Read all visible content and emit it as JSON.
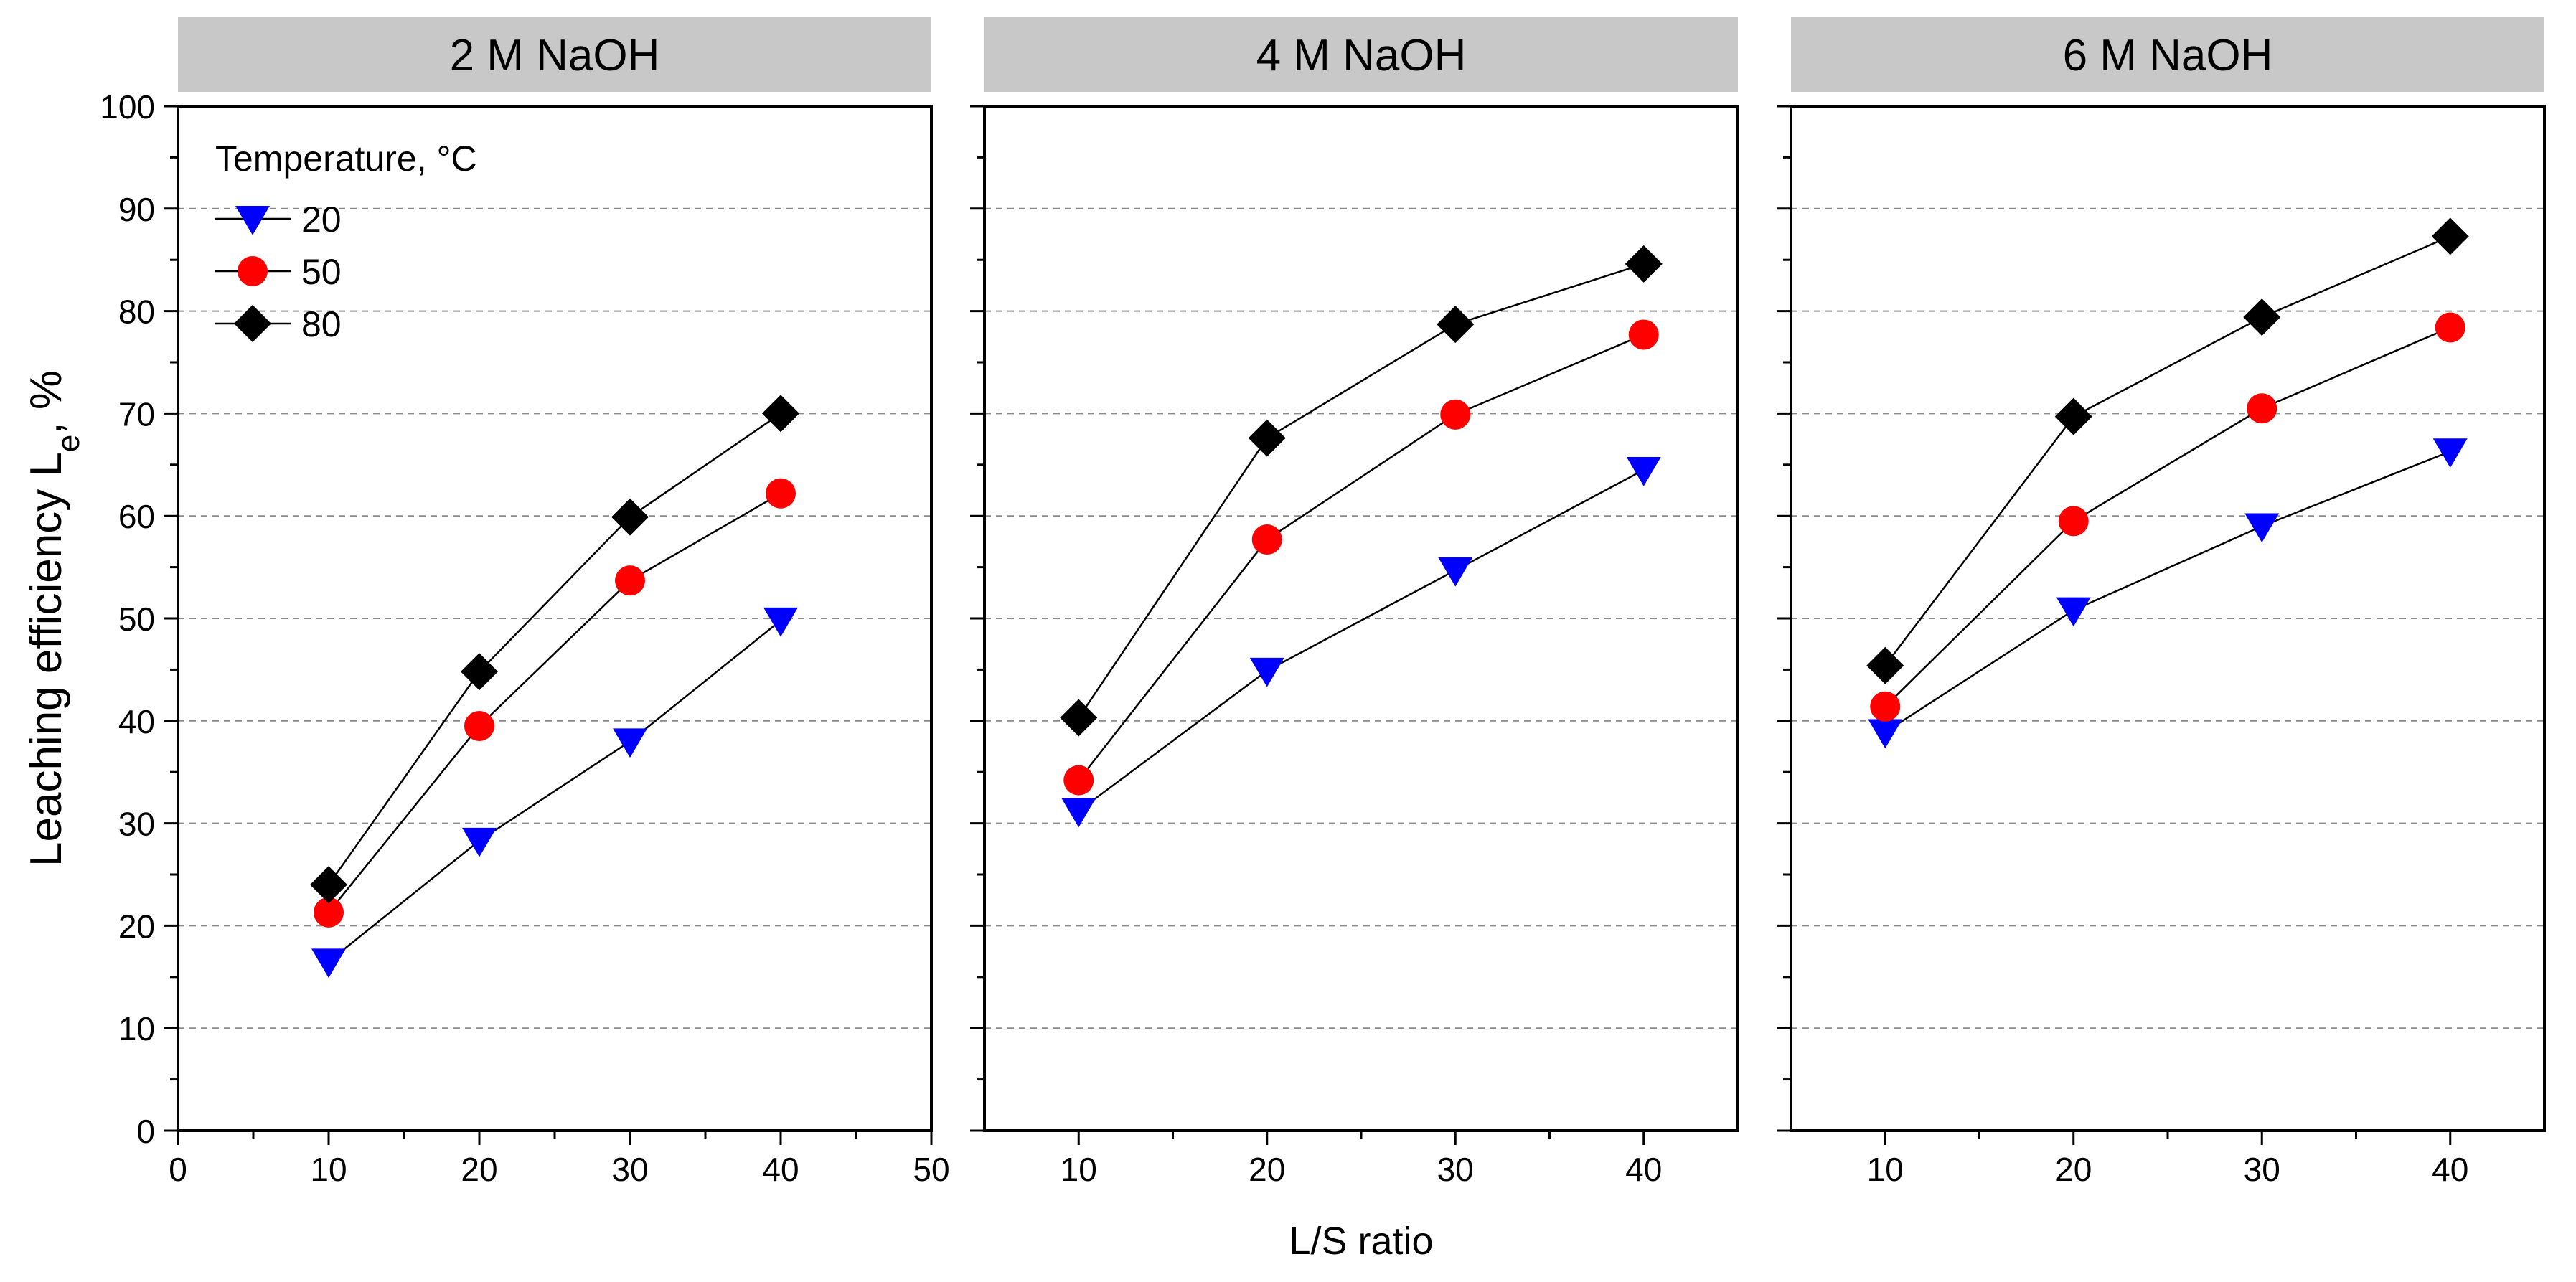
{
  "chart_data": {
    "type": "line",
    "shared": {
      "ylabel_main": "Leaching efficiency L",
      "ylabel_sub": "e",
      "ylabel_tail": ", %",
      "xlabel": "L/S ratio",
      "legend_title": "Temperature, °C",
      "ylim": [
        0,
        100
      ],
      "yticks": [
        0,
        10,
        20,
        30,
        40,
        50,
        60,
        70,
        80,
        90,
        100
      ],
      "grid": "horizontal dashed",
      "legend_placement": "top-left of first panel"
    },
    "series_style": [
      {
        "name": "20",
        "marker": "triangle-down",
        "color": "#0000ff"
      },
      {
        "name": "50",
        "marker": "circle",
        "color": "#ff0000"
      },
      {
        "name": "80",
        "marker": "diamond",
        "color": "#000000"
      }
    ],
    "panels": [
      {
        "title": "2 M NaOH",
        "x": [
          10,
          20,
          30,
          40
        ],
        "xlim": [
          0,
          50
        ],
        "xticks": [
          0,
          10,
          20,
          30,
          40,
          50
        ],
        "series": [
          {
            "name": "20",
            "values": [
              16.5,
              28.3,
              38.0,
              49.8
            ]
          },
          {
            "name": "50",
            "values": [
              21.3,
              39.5,
              53.7,
              62.2
            ]
          },
          {
            "name": "80",
            "values": [
              24.0,
              44.8,
              59.9,
              70.0
            ]
          }
        ]
      },
      {
        "title": "4 M NaOH",
        "x": [
          10,
          20,
          30,
          40
        ],
        "xlim": [
          5,
          45
        ],
        "xticks": [
          10,
          20,
          30,
          40
        ],
        "series": [
          {
            "name": "20",
            "values": [
              31.2,
              44.9,
              54.7,
              64.5
            ]
          },
          {
            "name": "50",
            "values": [
              34.2,
              57.7,
              69.9,
              77.7
            ]
          },
          {
            "name": "80",
            "values": [
              40.3,
              67.6,
              78.7,
              84.6
            ]
          }
        ]
      },
      {
        "title": "6 M NaOH",
        "x": [
          10,
          20,
          30,
          40
        ],
        "xlim": [
          5,
          45
        ],
        "xticks": [
          10,
          20,
          30,
          40
        ],
        "series": [
          {
            "name": "20",
            "values": [
              38.9,
              50.8,
              59.0,
              66.3
            ]
          },
          {
            "name": "50",
            "values": [
              41.4,
              59.5,
              70.5,
              78.4
            ]
          },
          {
            "name": "80",
            "values": [
              45.4,
              69.7,
              79.4,
              87.3
            ]
          }
        ]
      }
    ]
  }
}
